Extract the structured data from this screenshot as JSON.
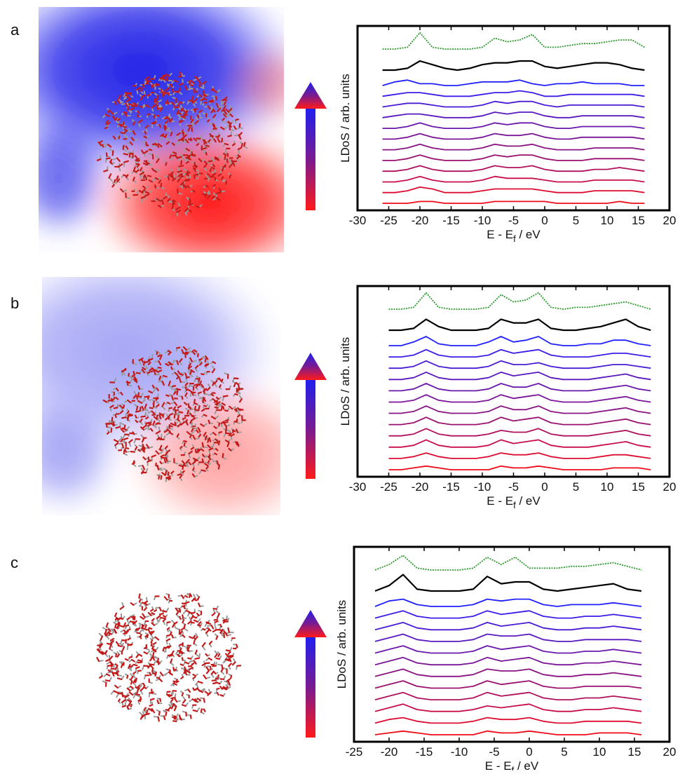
{
  "chart_data": [
    {
      "type": "line",
      "panel_label": "a",
      "y_label": "LDoS / arb. units",
      "x_label": {
        "main": "E - E",
        "sub": "f",
        "rest": " / eV"
      },
      "xlim": [
        -30,
        20
      ],
      "xticks": [
        -30,
        -25,
        -20,
        -15,
        -10,
        -5,
        0,
        5,
        10,
        15,
        20
      ],
      "x": [
        -26,
        -24,
        -22,
        -20,
        -18,
        -16,
        -14,
        -12,
        -10,
        -8,
        -6,
        -4,
        -2,
        0,
        2,
        4,
        6,
        8,
        10,
        12,
        14,
        16
      ],
      "series": [
        {
          "color": "#2a9a2a",
          "style": "dotted",
          "values": [
            0,
            0,
            1,
            9,
            1,
            0,
            0,
            0,
            1,
            6,
            4,
            5,
            8,
            1,
            1,
            2,
            3,
            3,
            4,
            5,
            5,
            1
          ]
        },
        {
          "color": "#000000",
          "values": [
            0,
            0,
            1,
            5,
            3,
            1,
            0,
            1,
            3,
            4,
            4,
            5,
            5,
            2,
            1,
            2,
            3,
            4,
            4,
            3,
            1,
            0
          ]
        },
        {
          "color": "#2020ff",
          "values": [
            0,
            2,
            3,
            1,
            1,
            0,
            0,
            1,
            2,
            2,
            2,
            3,
            1,
            0,
            1,
            1,
            2,
            1,
            1,
            1,
            0,
            0
          ]
        },
        {
          "color": "#3a1de8",
          "values": [
            0,
            1,
            2,
            2,
            1,
            0,
            0,
            0,
            1,
            2,
            2,
            3,
            2,
            0,
            0,
            1,
            1,
            1,
            1,
            1,
            1,
            0
          ]
        },
        {
          "color": "#4a1bd4",
          "values": [
            0,
            1,
            2,
            2,
            1,
            0,
            0,
            0,
            1,
            3,
            2,
            3,
            3,
            1,
            0,
            1,
            1,
            1,
            1,
            1,
            1,
            0
          ]
        },
        {
          "color": "#5a19c0",
          "values": [
            0,
            1,
            2,
            2,
            1,
            0,
            0,
            0,
            1,
            3,
            2,
            3,
            3,
            1,
            0,
            0,
            1,
            1,
            1,
            1,
            1,
            0
          ]
        },
        {
          "color": "#6a17ac",
          "values": [
            0,
            0,
            1,
            3,
            1,
            0,
            0,
            0,
            1,
            3,
            2,
            3,
            3,
            1,
            0,
            0,
            1,
            1,
            1,
            1,
            1,
            0
          ]
        },
        {
          "color": "#7a1598",
          "values": [
            0,
            0,
            1,
            3,
            1,
            0,
            0,
            0,
            1,
            3,
            2,
            2,
            3,
            1,
            0,
            0,
            1,
            1,
            1,
            1,
            1,
            0
          ]
        },
        {
          "color": "#8a1384",
          "values": [
            0,
            0,
            1,
            3,
            1,
            0,
            0,
            0,
            1,
            3,
            2,
            2,
            3,
            1,
            0,
            0,
            0,
            1,
            1,
            1,
            1,
            0
          ]
        },
        {
          "color": "#9a1170",
          "values": [
            0,
            0,
            1,
            3,
            1,
            0,
            0,
            0,
            1,
            3,
            2,
            3,
            3,
            1,
            0,
            0,
            0,
            1,
            1,
            1,
            1,
            0
          ]
        },
        {
          "color": "#b0105c",
          "values": [
            0,
            0,
            1,
            3,
            1,
            0,
            0,
            0,
            1,
            3,
            2,
            2,
            3,
            1,
            0,
            0,
            0,
            1,
            1,
            2,
            1,
            0
          ]
        },
        {
          "color": "#c80e48",
          "values": [
            0,
            0,
            1,
            3,
            1,
            0,
            0,
            0,
            1,
            3,
            2,
            2,
            2,
            1,
            0,
            0,
            0,
            1,
            1,
            1,
            1,
            0
          ]
        },
        {
          "color": "#dd0c30",
          "values": [
            0,
            0,
            1,
            3,
            2,
            0,
            0,
            0,
            1,
            2,
            2,
            2,
            2,
            1,
            0,
            0,
            0,
            1,
            1,
            1,
            1,
            0
          ]
        },
        {
          "color": "#f00a18",
          "values": [
            0,
            0,
            0,
            1,
            1,
            0,
            0,
            0,
            0,
            1,
            1,
            1,
            1,
            1,
            0,
            0,
            0,
            0,
            0,
            1,
            0,
            0
          ]
        }
      ]
    },
    {
      "type": "line",
      "panel_label": "b",
      "y_label": "LDoS / arb. units",
      "x_label": {
        "main": "E - E",
        "sub": "f",
        "rest": " / eV"
      },
      "xlim": [
        -30,
        20
      ],
      "xticks": [
        -30,
        -25,
        -20,
        -15,
        -10,
        -5,
        0,
        5,
        10,
        15,
        20
      ],
      "x": [
        -25,
        -23,
        -21,
        -19,
        -17,
        -15,
        -13,
        -11,
        -9,
        -7,
        -5,
        -3,
        -1,
        1,
        3,
        5,
        7,
        9,
        11,
        13,
        15,
        17
      ],
      "series": [
        {
          "color": "#2a9a2a",
          "style": "dotted",
          "values": [
            0,
            0,
            1,
            9,
            1,
            0,
            0,
            0,
            1,
            8,
            4,
            5,
            9,
            1,
            0,
            1,
            1,
            2,
            3,
            4,
            2,
            0
          ]
        },
        {
          "color": "#000000",
          "values": [
            0,
            0,
            1,
            6,
            2,
            0,
            0,
            0,
            1,
            6,
            4,
            4,
            6,
            1,
            0,
            0,
            1,
            2,
            4,
            6,
            2,
            0
          ]
        },
        {
          "color": "#2020ff",
          "values": [
            0,
            0,
            2,
            5,
            1,
            0,
            0,
            0,
            2,
            5,
            2,
            3,
            5,
            1,
            0,
            0,
            1,
            1,
            3,
            3,
            1,
            0
          ]
        },
        {
          "color": "#3a1de8",
          "values": [
            0,
            0,
            1,
            4,
            1,
            0,
            0,
            0,
            1,
            4,
            2,
            3,
            4,
            1,
            0,
            0,
            0,
            1,
            2,
            2,
            1,
            0
          ]
        },
        {
          "color": "#4a1bd4",
          "values": [
            0,
            0,
            1,
            4,
            1,
            0,
            0,
            0,
            1,
            4,
            2,
            2,
            3,
            1,
            0,
            0,
            0,
            1,
            2,
            2,
            1,
            0
          ]
        },
        {
          "color": "#5a19c0",
          "values": [
            0,
            0,
            1,
            4,
            1,
            0,
            0,
            0,
            1,
            4,
            2,
            3,
            4,
            1,
            0,
            0,
            0,
            1,
            2,
            3,
            1,
            0
          ]
        },
        {
          "color": "#6a17ac",
          "values": [
            0,
            0,
            1,
            4,
            1,
            0,
            0,
            0,
            1,
            4,
            2,
            2,
            4,
            1,
            0,
            0,
            0,
            1,
            2,
            3,
            1,
            0
          ]
        },
        {
          "color": "#7a1598",
          "values": [
            0,
            0,
            1,
            4,
            1,
            0,
            0,
            0,
            1,
            4,
            2,
            3,
            4,
            1,
            0,
            0,
            0,
            1,
            2,
            3,
            1,
            0
          ]
        },
        {
          "color": "#8a1384",
          "values": [
            0,
            0,
            1,
            4,
            1,
            0,
            0,
            0,
            1,
            4,
            2,
            2,
            4,
            1,
            0,
            0,
            0,
            1,
            2,
            3,
            1,
            0
          ]
        },
        {
          "color": "#9a1170",
          "values": [
            0,
            0,
            1,
            4,
            1,
            0,
            0,
            0,
            1,
            4,
            2,
            3,
            4,
            1,
            0,
            0,
            0,
            1,
            2,
            3,
            1,
            0
          ]
        },
        {
          "color": "#b0105c",
          "values": [
            0,
            0,
            1,
            4,
            1,
            0,
            0,
            0,
            1,
            3,
            2,
            2,
            4,
            1,
            0,
            0,
            0,
            1,
            2,
            3,
            1,
            0
          ]
        },
        {
          "color": "#c80e48",
          "values": [
            0,
            0,
            1,
            4,
            1,
            0,
            0,
            0,
            1,
            4,
            2,
            3,
            4,
            1,
            0,
            0,
            0,
            1,
            2,
            3,
            1,
            0
          ]
        },
        {
          "color": "#dd0c30",
          "values": [
            0,
            0,
            1,
            3,
            1,
            0,
            0,
            0,
            1,
            3,
            2,
            2,
            3,
            1,
            0,
            0,
            0,
            1,
            2,
            2,
            1,
            0
          ]
        },
        {
          "color": "#f00a18",
          "values": [
            0,
            0,
            1,
            2,
            1,
            0,
            0,
            0,
            0,
            2,
            1,
            1,
            2,
            1,
            0,
            0,
            0,
            0,
            1,
            1,
            1,
            0
          ]
        }
      ]
    },
    {
      "type": "line",
      "panel_label": "c",
      "y_label": "LDoS / arb. units",
      "x_label": {
        "main": "E - E",
        "sub": "f",
        "rest": " / eV"
      },
      "xlim": [
        -25,
        20
      ],
      "xticks": [
        -25,
        -20,
        -15,
        -10,
        -5,
        0,
        5,
        10,
        15,
        20
      ],
      "x": [
        -22,
        -20,
        -18,
        -16,
        -14,
        -12,
        -10,
        -8,
        -6,
        -4,
        -2,
        0,
        2,
        4,
        6,
        8,
        10,
        12,
        14,
        16
      ],
      "series": [
        {
          "color": "#2a9a2a",
          "style": "dotted",
          "values": [
            0,
            3,
            8,
            1,
            0,
            0,
            0,
            1,
            7,
            3,
            7,
            1,
            1,
            1,
            2,
            2,
            3,
            4,
            2,
            0
          ]
        },
        {
          "color": "#000000",
          "values": [
            0,
            3,
            9,
            1,
            0,
            0,
            0,
            1,
            8,
            4,
            5,
            5,
            1,
            0,
            1,
            2,
            3,
            4,
            1,
            0
          ]
        },
        {
          "color": "#2020ff",
          "values": [
            0,
            3,
            4,
            1,
            0,
            0,
            0,
            1,
            4,
            3,
            4,
            4,
            1,
            0,
            1,
            1,
            1,
            2,
            1,
            0
          ]
        },
        {
          "color": "#3a1de8",
          "values": [
            0,
            2,
            4,
            1,
            0,
            0,
            0,
            1,
            4,
            2,
            3,
            4,
            1,
            0,
            0,
            1,
            1,
            2,
            1,
            0
          ]
        },
        {
          "color": "#4a1bd4",
          "values": [
            0,
            2,
            4,
            1,
            0,
            0,
            0,
            1,
            4,
            2,
            3,
            4,
            1,
            0,
            0,
            1,
            1,
            2,
            1,
            0
          ]
        },
        {
          "color": "#5a19c0",
          "values": [
            0,
            2,
            4,
            1,
            0,
            0,
            0,
            1,
            4,
            3,
            3,
            4,
            1,
            0,
            0,
            1,
            1,
            1,
            1,
            0
          ]
        },
        {
          "color": "#6a17ac",
          "values": [
            0,
            2,
            4,
            1,
            0,
            0,
            0,
            1,
            4,
            2,
            3,
            4,
            1,
            0,
            0,
            1,
            1,
            2,
            1,
            0
          ]
        },
        {
          "color": "#7a1598",
          "values": [
            0,
            2,
            4,
            1,
            0,
            0,
            0,
            1,
            4,
            2,
            3,
            4,
            1,
            0,
            0,
            1,
            1,
            2,
            1,
            0
          ]
        },
        {
          "color": "#8a1384",
          "values": [
            0,
            2,
            4,
            1,
            0,
            0,
            0,
            1,
            4,
            3,
            3,
            4,
            1,
            0,
            0,
            1,
            1,
            2,
            1,
            0
          ]
        },
        {
          "color": "#9a1170",
          "values": [
            0,
            2,
            4,
            1,
            0,
            0,
            0,
            1,
            4,
            2,
            3,
            4,
            1,
            0,
            0,
            1,
            1,
            1,
            1,
            0
          ]
        },
        {
          "color": "#b0105c",
          "values": [
            0,
            2,
            4,
            1,
            0,
            0,
            0,
            1,
            4,
            2,
            3,
            4,
            1,
            0,
            0,
            1,
            1,
            2,
            1,
            0
          ]
        },
        {
          "color": "#c80e48",
          "values": [
            0,
            2,
            4,
            1,
            0,
            0,
            0,
            1,
            3,
            2,
            3,
            4,
            1,
            0,
            0,
            1,
            1,
            2,
            1,
            0
          ]
        },
        {
          "color": "#dd0c30",
          "values": [
            0,
            2,
            3,
            1,
            0,
            0,
            0,
            1,
            3,
            2,
            2,
            3,
            1,
            0,
            0,
            1,
            1,
            1,
            1,
            0
          ]
        },
        {
          "color": "#f00a18",
          "values": [
            0,
            1,
            2,
            1,
            0,
            0,
            0,
            0,
            2,
            1,
            1,
            2,
            1,
            0,
            0,
            0,
            1,
            1,
            1,
            0
          ]
        }
      ]
    }
  ]
}
